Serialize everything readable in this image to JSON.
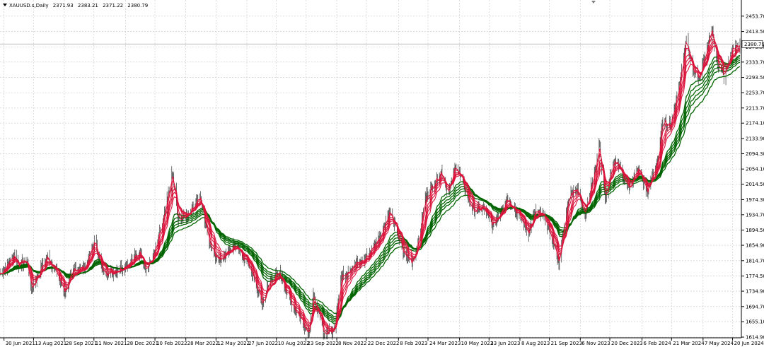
{
  "chart_data": {
    "type": "line",
    "symbol": "XAUUSD.s,Daily",
    "ohlc": [
      "2371.93",
      "2383.21",
      "2371.22",
      "2380.79"
    ],
    "current_price": "2380.79",
    "ylim": [
      1614.9,
      2470
    ],
    "y_ticks": [
      "2453.70",
      "2413.50",
      "2373.50",
      "2333.70",
      "2293.50",
      "2253.70",
      "2213.70",
      "2174.10",
      "2133.90",
      "2094.30",
      "2054.10",
      "2014.50",
      "1974.30",
      "1934.70",
      "1894.50",
      "1854.90",
      "1814.70",
      "1774.50",
      "1734.90",
      "1694.70",
      "1655.10",
      "1614.90"
    ],
    "x_ticks": [
      "30 Jun 2021",
      "13 Aug 2021",
      "28 Sep 2021",
      "11 Nov 2021",
      "28 Dec 2021",
      "10 Feb 2022",
      "28 Mar 2022",
      "12 May 2022",
      "27 Jun 2022",
      "10 Aug 2022",
      "23 Sep 2022",
      "8 Nov 2022",
      "22 Dec 2022",
      "8 Feb 2023",
      "24 Mar 2023",
      "10 May 2023",
      "23 Jun 2023",
      "8 Aug 2023",
      "21 Sep 2023",
      "6 Nov 2023",
      "20 Dec 2023",
      "6 Feb 2024",
      "21 Mar 2024",
      "7 May 2024",
      "20 Jun 2024"
    ],
    "x_start": "2021-06-24",
    "x_end": "2024-07-01",
    "price_path": [
      [
        "2021-06-24",
        1780
      ],
      [
        "2021-07-05",
        1805
      ],
      [
        "2021-07-15",
        1830
      ],
      [
        "2021-07-22",
        1805
      ],
      [
        "2021-08-03",
        1815
      ],
      [
        "2021-08-10",
        1738
      ],
      [
        "2021-08-20",
        1782
      ],
      [
        "2021-09-03",
        1825
      ],
      [
        "2021-09-13",
        1795
      ],
      [
        "2021-09-28",
        1733
      ],
      [
        "2021-10-14",
        1795
      ],
      [
        "2021-10-28",
        1795
      ],
      [
        "2021-11-12",
        1865
      ],
      [
        "2021-11-24",
        1785
      ],
      [
        "2021-12-08",
        1783
      ],
      [
        "2021-12-20",
        1795
      ],
      [
        "2022-01-05",
        1812
      ],
      [
        "2022-01-20",
        1840
      ],
      [
        "2022-01-28",
        1790
      ],
      [
        "2022-02-10",
        1838
      ],
      [
        "2022-02-24",
        1932
      ],
      [
        "2022-03-08",
        2045
      ],
      [
        "2022-03-16",
        1920
      ],
      [
        "2022-03-28",
        1930
      ],
      [
        "2022-04-18",
        1982
      ],
      [
        "2022-05-02",
        1862
      ],
      [
        "2022-05-16",
        1815
      ],
      [
        "2022-06-08",
        1855
      ],
      [
        "2022-06-30",
        1805
      ],
      [
        "2022-07-20",
        1700
      ],
      [
        "2022-08-01",
        1765
      ],
      [
        "2022-08-15",
        1780
      ],
      [
        "2022-09-01",
        1705
      ],
      [
        "2022-09-15",
        1665
      ],
      [
        "2022-09-27",
        1625
      ],
      [
        "2022-10-04",
        1725
      ],
      [
        "2022-10-20",
        1625
      ],
      [
        "2022-11-03",
        1630
      ],
      [
        "2022-11-15",
        1775
      ],
      [
        "2022-12-01",
        1800
      ],
      [
        "2022-12-20",
        1818
      ],
      [
        "2023-01-10",
        1875
      ],
      [
        "2023-01-26",
        1945
      ],
      [
        "2023-02-15",
        1835
      ],
      [
        "2023-02-28",
        1810
      ],
      [
        "2023-03-10",
        1868
      ],
      [
        "2023-03-20",
        1980
      ],
      [
        "2023-04-04",
        2025
      ],
      [
        "2023-04-13",
        2048
      ],
      [
        "2023-04-24",
        1990
      ],
      [
        "2023-05-04",
        2068
      ],
      [
        "2023-05-15",
        2015
      ],
      [
        "2023-05-30",
        1945
      ],
      [
        "2023-06-15",
        1950
      ],
      [
        "2023-06-29",
        1905
      ],
      [
        "2023-07-20",
        1980
      ],
      [
        "2023-08-08",
        1928
      ],
      [
        "2023-08-21",
        1888
      ],
      [
        "2023-09-01",
        1945
      ],
      [
        "2023-09-15",
        1925
      ],
      [
        "2023-10-05",
        1812
      ],
      [
        "2023-10-20",
        1985
      ],
      [
        "2023-10-30",
        2008
      ],
      [
        "2023-11-13",
        1940
      ],
      [
        "2023-12-01",
        2075
      ],
      [
        "2023-12-04",
        2130
      ],
      [
        "2023-12-13",
        1975
      ],
      [
        "2023-12-27",
        2080
      ],
      [
        "2024-01-17",
        2005
      ],
      [
        "2024-02-01",
        2055
      ],
      [
        "2024-02-14",
        1992
      ],
      [
        "2024-03-01",
        2085
      ],
      [
        "2024-03-08",
        2180
      ],
      [
        "2024-03-20",
        2170
      ],
      [
        "2024-04-01",
        2270
      ],
      [
        "2024-04-12",
        2395
      ],
      [
        "2024-04-22",
        2315
      ],
      [
        "2024-05-02",
        2290
      ],
      [
        "2024-05-20",
        2420
      ],
      [
        "2024-05-30",
        2325
      ],
      [
        "2024-06-07",
        2300
      ],
      [
        "2024-06-20",
        2368
      ],
      [
        "2024-07-01",
        2380
      ]
    ],
    "colors": {
      "fast_ma": "#dc143c",
      "slow_ma": "#006400",
      "candle": "#000000",
      "grid": "#c8c8c8",
      "price_line": "#b0b0b0"
    }
  }
}
